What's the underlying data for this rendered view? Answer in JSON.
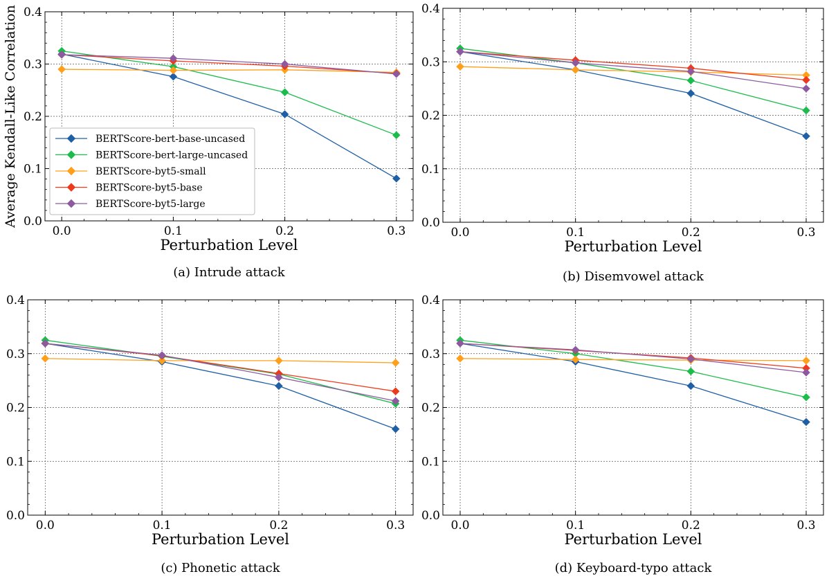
{
  "shared": {
    "xlabel": "Perturbation Level",
    "ylabel": "Average Kendall-Like Correlation",
    "x_ticks": [
      "0.0",
      "0.1",
      "0.2",
      "0.3"
    ],
    "y_ticks": [
      "0.0",
      "0.1",
      "0.2",
      "0.3",
      "0.4"
    ],
    "series_colors": [
      "#1f5fa6",
      "#1cbc4c",
      "#ff9f1a",
      "#ee3a1c",
      "#8d5aa0"
    ],
    "legend_names": [
      "BERTScore-bert-base-uncased",
      "BERTScore-bert-large-uncased",
      "BERTScore-byt5-small",
      "BERTScore-byt5-base",
      "BERTScore-byt5-large"
    ],
    "marker": "diamond",
    "grid": "on",
    "legend_location": "lower-left of panel (a)"
  },
  "chart_data": [
    {
      "type": "line",
      "title": "(a) Intrude attack",
      "xlabel": "Perturbation Level",
      "ylabel": "Average Kendall-Like Correlation",
      "x": [
        0.0,
        0.1,
        0.2,
        0.3
      ],
      "xlim": [
        -0.015,
        0.315
      ],
      "ylim": [
        0.0,
        0.4
      ],
      "legend": true,
      "series": [
        {
          "name": "BERTScore-bert-base-uncased",
          "values": [
            0.319,
            0.276,
            0.204,
            0.081
          ]
        },
        {
          "name": "BERTScore-bert-large-uncased",
          "values": [
            0.325,
            0.295,
            0.246,
            0.164
          ]
        },
        {
          "name": "BERTScore-byt5-small",
          "values": [
            0.29,
            0.288,
            0.289,
            0.284
          ]
        },
        {
          "name": "BERTScore-byt5-base",
          "values": [
            0.318,
            0.306,
            0.296,
            0.282
          ]
        },
        {
          "name": "BERTScore-byt5-large",
          "values": [
            0.318,
            0.311,
            0.3,
            0.281
          ]
        }
      ]
    },
    {
      "type": "line",
      "title": "(b) Disemvowel attack",
      "xlabel": "Perturbation Level",
      "ylabel": "",
      "x": [
        0.0,
        0.1,
        0.2,
        0.3
      ],
      "xlim": [
        -0.015,
        0.315
      ],
      "ylim": [
        0.0,
        0.4
      ],
      "legend": false,
      "series": [
        {
          "name": "BERTScore-bert-base-uncased",
          "values": [
            0.319,
            0.285,
            0.241,
            0.161
          ]
        },
        {
          "name": "BERTScore-bert-large-uncased",
          "values": [
            0.325,
            0.298,
            0.265,
            0.209
          ]
        },
        {
          "name": "BERTScore-byt5-small",
          "values": [
            0.291,
            0.285,
            0.281,
            0.275
          ]
        },
        {
          "name": "BERTScore-byt5-base",
          "values": [
            0.319,
            0.303,
            0.288,
            0.266
          ]
        },
        {
          "name": "BERTScore-byt5-large",
          "values": [
            0.319,
            0.298,
            0.282,
            0.25
          ]
        }
      ]
    },
    {
      "type": "line",
      "title": "(c) Phonetic attack",
      "xlabel": "Perturbation Level",
      "ylabel": "",
      "x": [
        0.0,
        0.1,
        0.2,
        0.3
      ],
      "xlim": [
        -0.015,
        0.315
      ],
      "ylim": [
        0.0,
        0.4
      ],
      "legend": false,
      "series": [
        {
          "name": "BERTScore-bert-base-uncased",
          "values": [
            0.319,
            0.285,
            0.24,
            0.16
          ]
        },
        {
          "name": "BERTScore-bert-large-uncased",
          "values": [
            0.325,
            0.295,
            0.262,
            0.207
          ]
        },
        {
          "name": "BERTScore-byt5-small",
          "values": [
            0.291,
            0.287,
            0.287,
            0.283
          ]
        },
        {
          "name": "BERTScore-byt5-base",
          "values": [
            0.319,
            0.296,
            0.263,
            0.23
          ]
        },
        {
          "name": "BERTScore-byt5-large",
          "values": [
            0.319,
            0.297,
            0.256,
            0.212
          ]
        }
      ]
    },
    {
      "type": "line",
      "title": "(d) Keyboard-typo attack",
      "xlabel": "Perturbation Level",
      "ylabel": "",
      "x": [
        0.0,
        0.1,
        0.2,
        0.3
      ],
      "xlim": [
        -0.015,
        0.315
      ],
      "ylim": [
        0.0,
        0.4
      ],
      "legend": false,
      "series": [
        {
          "name": "BERTScore-bert-base-uncased",
          "values": [
            0.319,
            0.285,
            0.24,
            0.173
          ]
        },
        {
          "name": "BERTScore-bert-large-uncased",
          "values": [
            0.325,
            0.3,
            0.267,
            0.219
          ]
        },
        {
          "name": "BERTScore-byt5-small",
          "values": [
            0.291,
            0.289,
            0.288,
            0.287
          ]
        },
        {
          "name": "BERTScore-byt5-base",
          "values": [
            0.319,
            0.306,
            0.292,
            0.273
          ]
        },
        {
          "name": "BERTScore-byt5-large",
          "values": [
            0.319,
            0.307,
            0.29,
            0.265
          ]
        }
      ]
    }
  ]
}
